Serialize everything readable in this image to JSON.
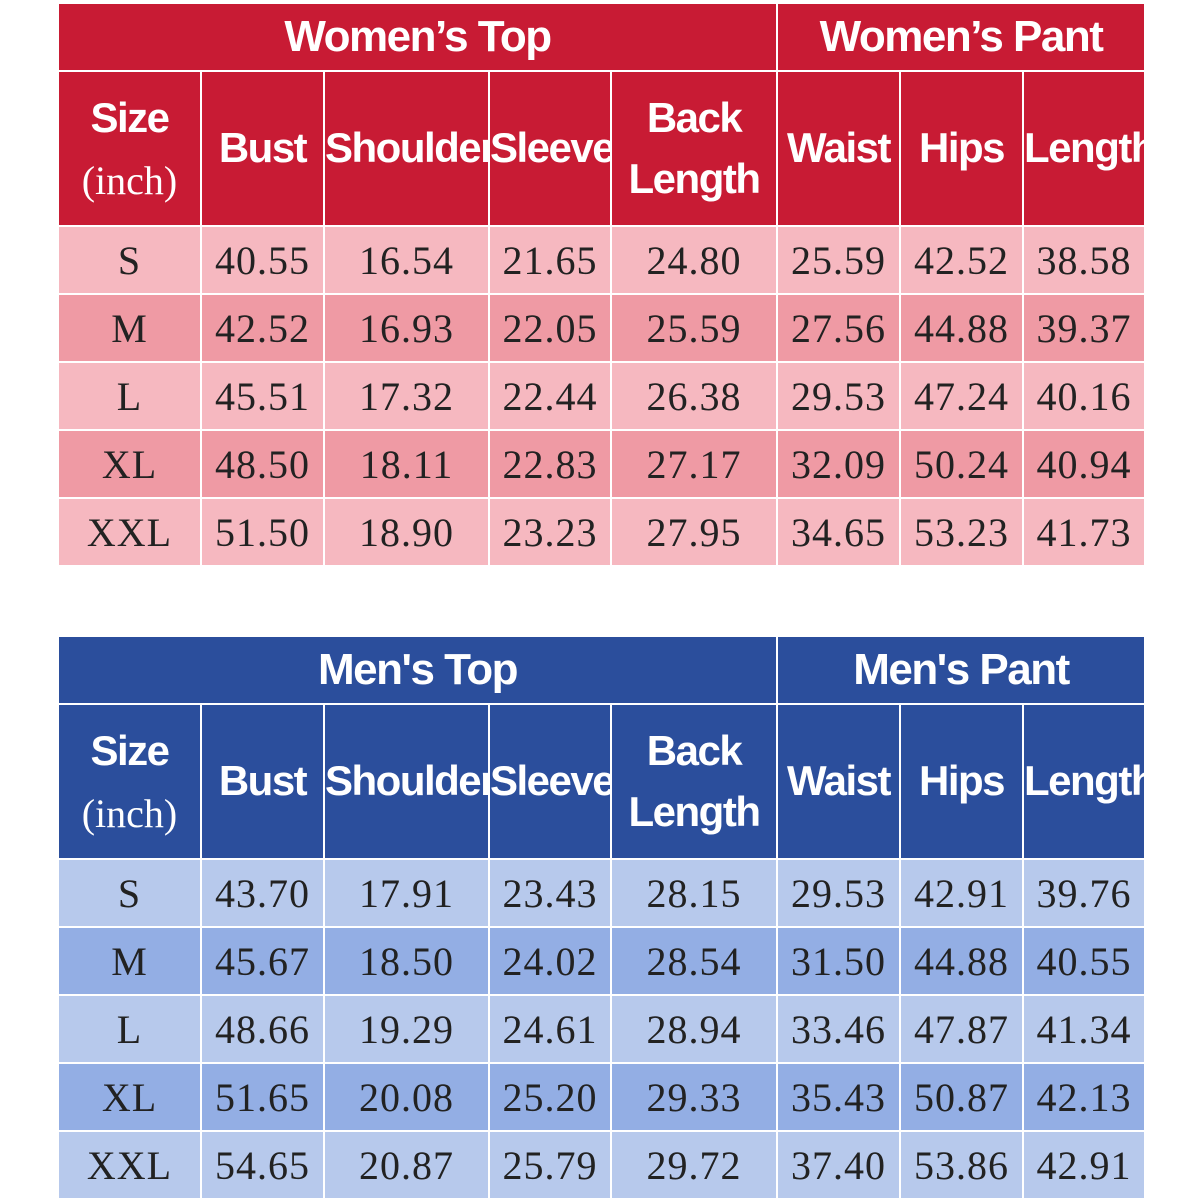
{
  "columns": {
    "size": "Size",
    "unit": "(inch)",
    "bust": "Bust",
    "shoulder": "Shoulder",
    "sleeve": "Sleeve",
    "back_length_1": "Back",
    "back_length_2": "Length",
    "waist": "Waist",
    "hips": "Hips",
    "length": "Length"
  },
  "women": {
    "top_title": "Women’s Top",
    "pant_title": "Women’s Pant",
    "colors": {
      "header": "#c81b34",
      "row_light": "#f6b8c0",
      "row_dark": "#ef9aa4"
    },
    "rows": [
      [
        "S",
        "40.55",
        "16.54",
        "21.65",
        "24.80",
        "25.59",
        "42.52",
        "38.58"
      ],
      [
        "M",
        "42.52",
        "16.93",
        "22.05",
        "25.59",
        "27.56",
        "44.88",
        "39.37"
      ],
      [
        "L",
        "45.51",
        "17.32",
        "22.44",
        "26.38",
        "29.53",
        "47.24",
        "40.16"
      ],
      [
        "XL",
        "48.50",
        "18.11",
        "22.83",
        "27.17",
        "32.09",
        "50.24",
        "40.94"
      ],
      [
        "XXL",
        "51.50",
        "18.90",
        "23.23",
        "27.95",
        "34.65",
        "53.23",
        "41.73"
      ]
    ]
  },
  "men": {
    "top_title": "Men's Top",
    "pant_title": "Men's Pant",
    "colors": {
      "header": "#2b4e9c",
      "row_light": "#b7c9ec",
      "row_dark": "#93aee4"
    },
    "rows": [
      [
        "S",
        "43.70",
        "17.91",
        "23.43",
        "28.15",
        "29.53",
        "42.91",
        "39.76"
      ],
      [
        "M",
        "45.67",
        "18.50",
        "24.02",
        "28.54",
        "31.50",
        "44.88",
        "40.55"
      ],
      [
        "L",
        "48.66",
        "19.29",
        "24.61",
        "28.94",
        "33.46",
        "47.87",
        "41.34"
      ],
      [
        "XL",
        "51.65",
        "20.08",
        "25.20",
        "29.33",
        "35.43",
        "50.87",
        "42.13"
      ],
      [
        "XXL",
        "54.65",
        "20.87",
        "25.79",
        "29.72",
        "37.40",
        "53.86",
        "42.91"
      ]
    ]
  }
}
